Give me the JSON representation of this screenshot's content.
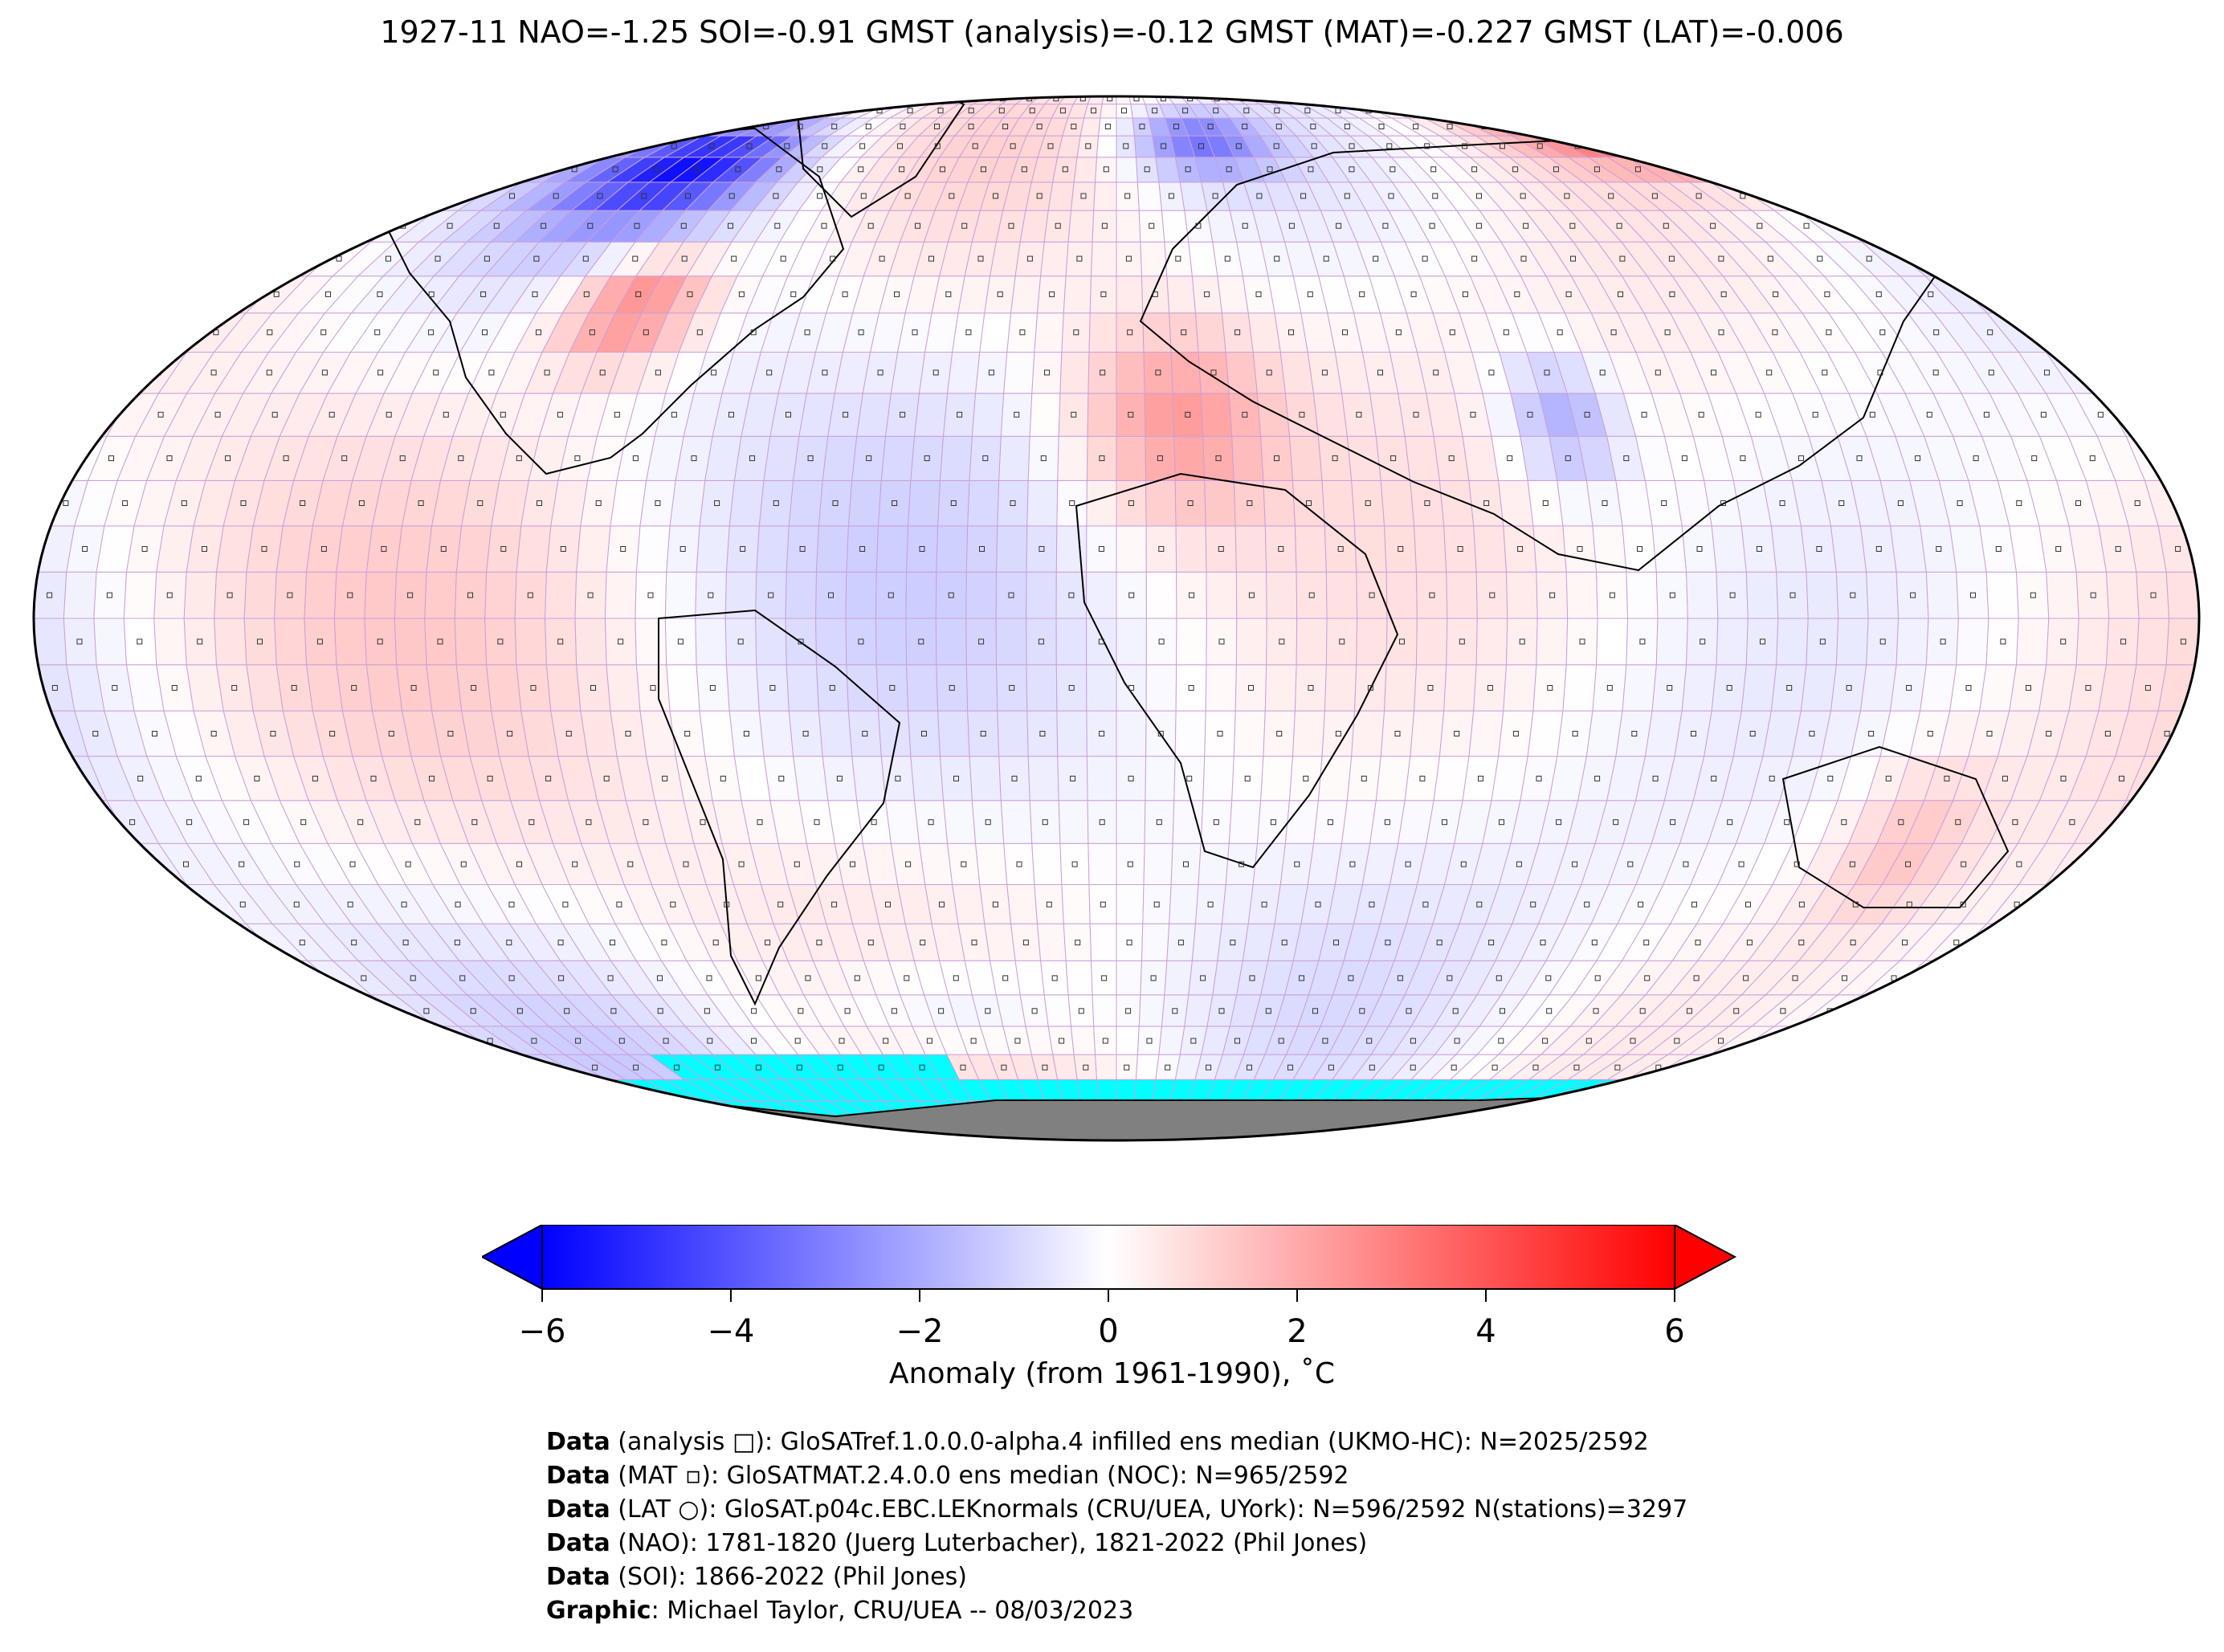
{
  "title": "1927-11 NAO=-1.25 SOI=-0.91 GMST (analysis)=-0.12 GMST (MAT)=-0.227 GMST (LAT)=-0.006",
  "colorbar": {
    "label": "Anomaly (from 1961-1990), ˚C",
    "ticks": [
      "−6",
      "−4",
      "−2",
      "0",
      "2",
      "4",
      "6"
    ],
    "tick_values": [
      -6,
      -4,
      -2,
      0,
      2,
      4,
      6
    ],
    "vmin": -6,
    "vmax": 6,
    "colors": {
      "low": "#0000ff",
      "mid": "#ffffff",
      "high": "#ff0000",
      "missing": "#00ffff",
      "land_ice": "#808080"
    }
  },
  "credits": [
    {
      "head": "Data",
      "text": " (analysis □): GloSATref.1.0.0.0-alpha.4 infilled ens median (UKMO-HC): N=2025/2592"
    },
    {
      "head": "Data",
      "text": " (MAT ▫): GloSATMAT.2.4.0.0 ens median (NOC): N=965/2592"
    },
    {
      "head": "Data",
      "text": " (LAT ○): GloSAT.p04c.EBC.LEKnormals (CRU/UEA, UYork): N=596/2592 N(stations)=3297"
    },
    {
      "head": "Data",
      "text": " (NAO): 1781-1820 (Juerg Luterbacher), 1821-2022 (Phil Jones)"
    },
    {
      "head": "Data",
      "text": " (SOI): 1866-2022 (Phil Jones)"
    },
    {
      "head": "Graphic",
      "text": ": Michael Taylor, CRU/UEA -- 08/03/2023"
    }
  ]
}
